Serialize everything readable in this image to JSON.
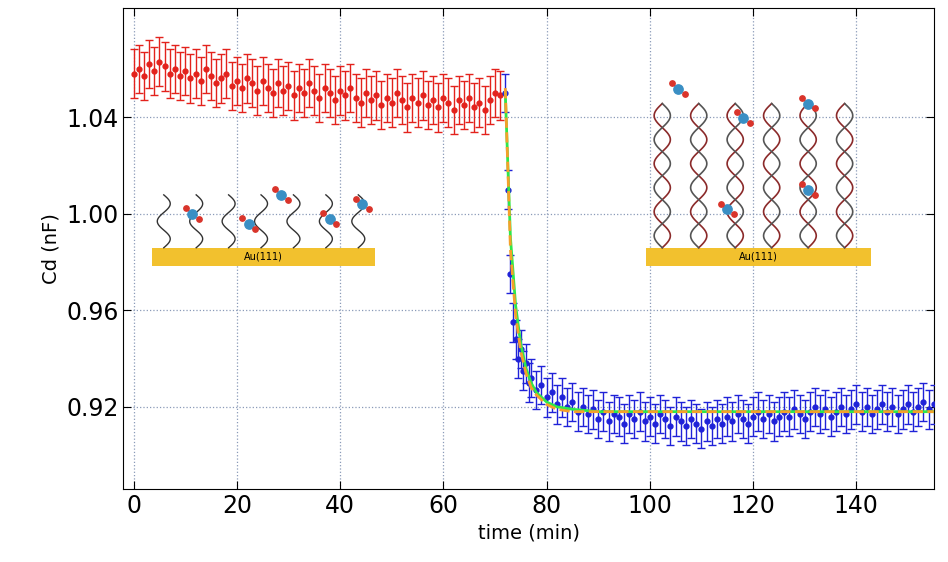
{
  "chart_data": {
    "type": "scatter",
    "x_label": "time (min)",
    "y_label": "Cd (nF)",
    "xlim": [
      -2,
      155
    ],
    "ylim": [
      0.886,
      1.085
    ],
    "xticks": [
      0,
      20,
      40,
      60,
      80,
      100,
      120,
      140
    ],
    "yticks": [
      0.92,
      0.96,
      {
        "value": 1.0,
        "label": "1.00"
      },
      1.04
    ],
    "grid": true,
    "annotations": [
      "Au(111)",
      "Au(111)"
    ],
    "series": [
      {
        "type": "scatter",
        "color": "#e3221c",
        "marker": "o",
        "error": 0.01,
        "x": [
          0,
          1,
          2,
          3,
          4,
          5,
          6,
          7,
          8,
          9,
          10,
          11,
          12,
          13,
          14,
          15,
          16,
          17,
          18,
          19,
          20,
          21,
          22,
          23,
          24,
          25,
          26,
          27,
          28,
          29,
          30,
          31,
          32,
          33,
          34,
          35,
          36,
          37,
          38,
          39,
          40,
          41,
          42,
          43,
          44,
          45,
          46,
          47,
          48,
          49,
          50,
          51,
          52,
          53,
          54,
          55,
          56,
          57,
          58,
          59,
          60,
          61,
          62,
          63,
          64,
          65,
          66,
          67,
          68,
          69,
          70,
          71
        ],
        "values": [
          1.058,
          1.06,
          1.057,
          1.062,
          1.059,
          1.063,
          1.061,
          1.058,
          1.06,
          1.057,
          1.059,
          1.056,
          1.058,
          1.055,
          1.06,
          1.057,
          1.054,
          1.056,
          1.058,
          1.053,
          1.055,
          1.052,
          1.056,
          1.054,
          1.051,
          1.055,
          1.052,
          1.05,
          1.054,
          1.051,
          1.053,
          1.049,
          1.052,
          1.05,
          1.054,
          1.051,
          1.048,
          1.052,
          1.05,
          1.047,
          1.051,
          1.049,
          1.052,
          1.048,
          1.046,
          1.05,
          1.047,
          1.049,
          1.045,
          1.048,
          1.046,
          1.05,
          1.047,
          1.044,
          1.048,
          1.046,
          1.049,
          1.045,
          1.047,
          1.044,
          1.048,
          1.046,
          1.043,
          1.047,
          1.045,
          1.048,
          1.044,
          1.046,
          1.043,
          1.047,
          1.05,
          1.049
        ]
      },
      {
        "type": "scatter",
        "color": "#1f22d8",
        "marker": "o",
        "error": 0.008,
        "x": [
          72,
          72.5,
          73,
          73.5,
          74,
          74.5,
          75,
          75.5,
          76,
          76.5,
          77,
          78,
          79,
          80,
          81,
          82,
          83,
          84,
          85,
          86,
          87,
          88,
          89,
          90,
          91,
          92,
          93,
          94,
          95,
          96,
          97,
          98,
          99,
          100,
          101,
          102,
          103,
          104,
          105,
          106,
          107,
          108,
          109,
          110,
          111,
          112,
          113,
          114,
          115,
          116,
          117,
          118,
          119,
          120,
          121,
          122,
          123,
          124,
          125,
          126,
          127,
          128,
          129,
          130,
          131,
          132,
          133,
          134,
          135,
          136,
          137,
          138,
          139,
          140,
          141,
          142,
          143,
          144,
          145,
          146,
          147,
          148,
          149,
          150,
          151,
          152,
          153,
          154,
          155
        ],
        "values": [
          1.05,
          1.01,
          0.975,
          0.955,
          0.948,
          0.94,
          0.944,
          0.935,
          0.938,
          0.93,
          0.932,
          0.927,
          0.929,
          0.924,
          0.926,
          0.921,
          0.924,
          0.92,
          0.922,
          0.918,
          0.92,
          0.917,
          0.919,
          0.915,
          0.918,
          0.914,
          0.917,
          0.916,
          0.913,
          0.917,
          0.915,
          0.918,
          0.914,
          0.916,
          0.913,
          0.917,
          0.915,
          0.912,
          0.916,
          0.914,
          0.912,
          0.915,
          0.913,
          0.911,
          0.914,
          0.912,
          0.915,
          0.913,
          0.916,
          0.914,
          0.917,
          0.915,
          0.913,
          0.916,
          0.918,
          0.915,
          0.917,
          0.914,
          0.916,
          0.918,
          0.916,
          0.919,
          0.917,
          0.915,
          0.918,
          0.92,
          0.917,
          0.919,
          0.916,
          0.918,
          0.92,
          0.917,
          0.919,
          0.921,
          0.918,
          0.92,
          0.917,
          0.919,
          0.921,
          0.918,
          0.92,
          0.917,
          0.919,
          0.921,
          0.918,
          0.92,
          0.922,
          0.919,
          0.921
        ]
      },
      {
        "type": "line",
        "color": "#2ee84a",
        "line_style": "solid",
        "x": [
          72,
          73,
          74,
          75,
          76,
          77,
          78,
          80,
          82,
          85,
          90,
          100,
          120,
          155
        ],
        "values": [
          1.05,
          0.99,
          0.962,
          0.946,
          0.936,
          0.93,
          0.926,
          0.922,
          0.92,
          0.919,
          0.918,
          0.918,
          0.918,
          0.918
        ]
      },
      {
        "type": "line",
        "color": "#f5a02a",
        "line_style": "dashed",
        "x": [
          72,
          73,
          74,
          75,
          76,
          77,
          78,
          80,
          82,
          85,
          90,
          100,
          120,
          155
        ],
        "values": [
          1.052,
          0.985,
          0.958,
          0.943,
          0.934,
          0.928,
          0.925,
          0.921,
          0.919,
          0.918,
          0.918,
          0.918,
          0.918,
          0.918
        ]
      }
    ]
  }
}
